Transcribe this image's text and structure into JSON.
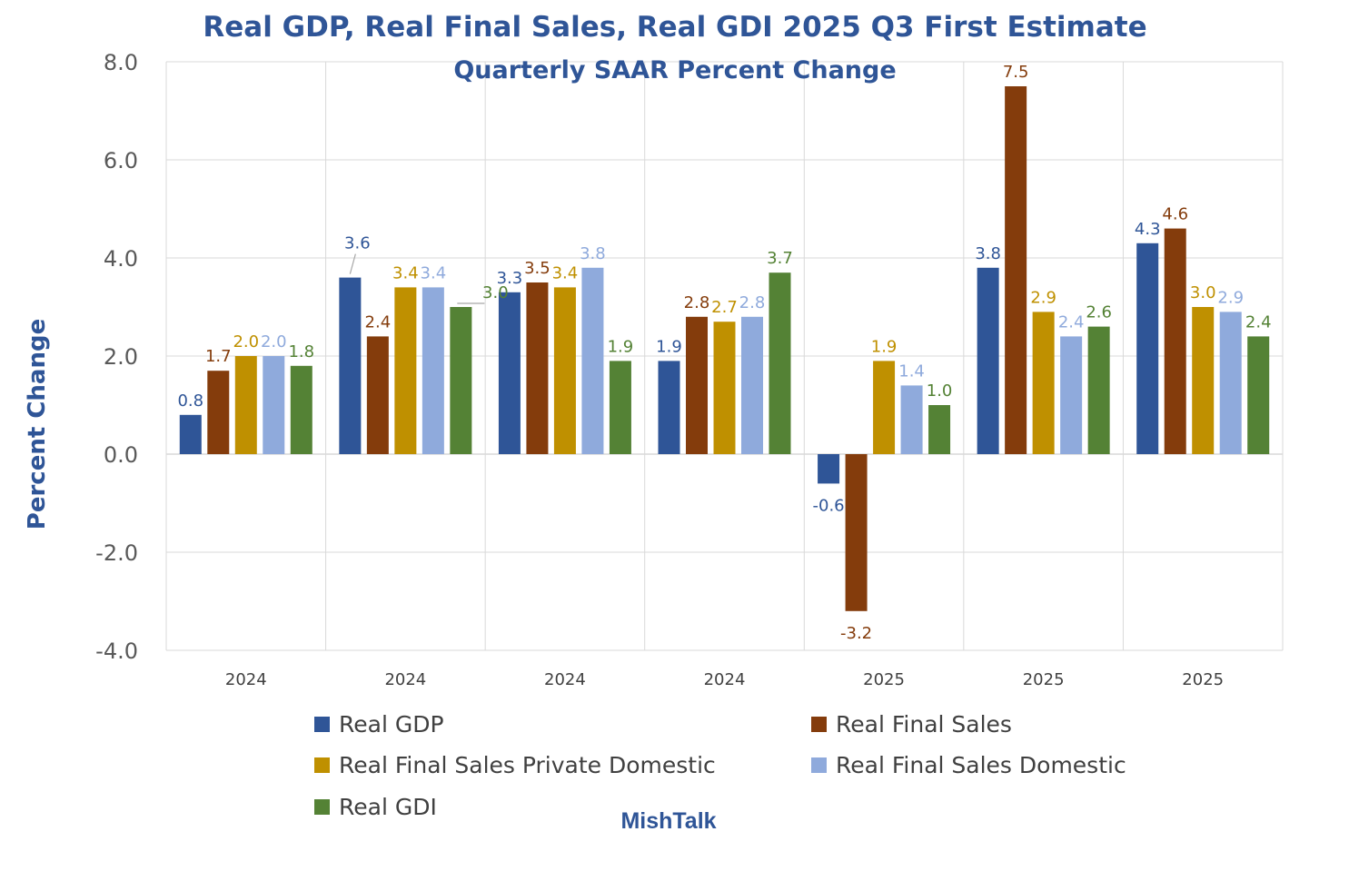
{
  "chart_data": {
    "type": "bar",
    "title": "Real GDP, Real Final Sales, Real GDI 2025 Q3 First Estimate",
    "subtitle": "Quarterly SAAR Percent Change",
    "xlabel": "",
    "ylabel": "Percent Change",
    "ylim": [
      -4.0,
      8.0
    ],
    "yticks": [
      "8.0",
      "6.0",
      "4.0",
      "2.0",
      "0.0",
      "-2.0",
      "-4.0"
    ],
    "ytick_values": [
      8,
      6,
      4,
      2,
      0,
      -2,
      -4
    ],
    "categories": [
      "2024",
      "2024",
      "2024",
      "2024",
      "2025",
      "2025",
      "2025"
    ],
    "grid": true,
    "legend_position": "bottom",
    "series": [
      {
        "name": "Real GDP",
        "color": "#2F5597",
        "values": [
          0.8,
          3.6,
          3.3,
          1.9,
          -0.6,
          3.8,
          4.3
        ],
        "labels": [
          "0.8",
          "3.6",
          "3.3",
          "1.9",
          "-0.6",
          "3.8",
          "4.3"
        ]
      },
      {
        "name": "Real Final Sales",
        "color": "#843C0C",
        "values": [
          1.7,
          2.4,
          3.5,
          2.8,
          -3.2,
          7.5,
          4.6
        ],
        "labels": [
          "1.7",
          "2.4",
          "3.5",
          "2.8",
          "-3.2",
          "7.5",
          "4.6"
        ]
      },
      {
        "name": "Real Final Sales Private Domestic",
        "color": "#BF9000",
        "values": [
          2.0,
          3.4,
          3.4,
          2.7,
          1.9,
          2.9,
          3.0
        ],
        "labels": [
          "2.0",
          "3.4",
          "3.4",
          "2.7",
          "1.9",
          "2.9",
          "3.0"
        ]
      },
      {
        "name": "Real Final Sales Domestic",
        "color": "#8FAADC",
        "values": [
          2.0,
          3.4,
          3.8,
          2.8,
          1.4,
          2.4,
          2.9
        ],
        "labels": [
          "2.0",
          "3.4",
          "3.8",
          "2.8",
          "1.4",
          "2.4",
          "2.9"
        ]
      },
      {
        "name": "Real GDI",
        "color": "#548235",
        "values": [
          1.8,
          3.0,
          1.9,
          3.7,
          1.0,
          2.6,
          2.4
        ],
        "labels": [
          "1.8",
          "3.0",
          "1.9",
          "3.7",
          "1.0",
          "2.6",
          "2.4"
        ]
      }
    ],
    "watermark": "MishTalk"
  }
}
